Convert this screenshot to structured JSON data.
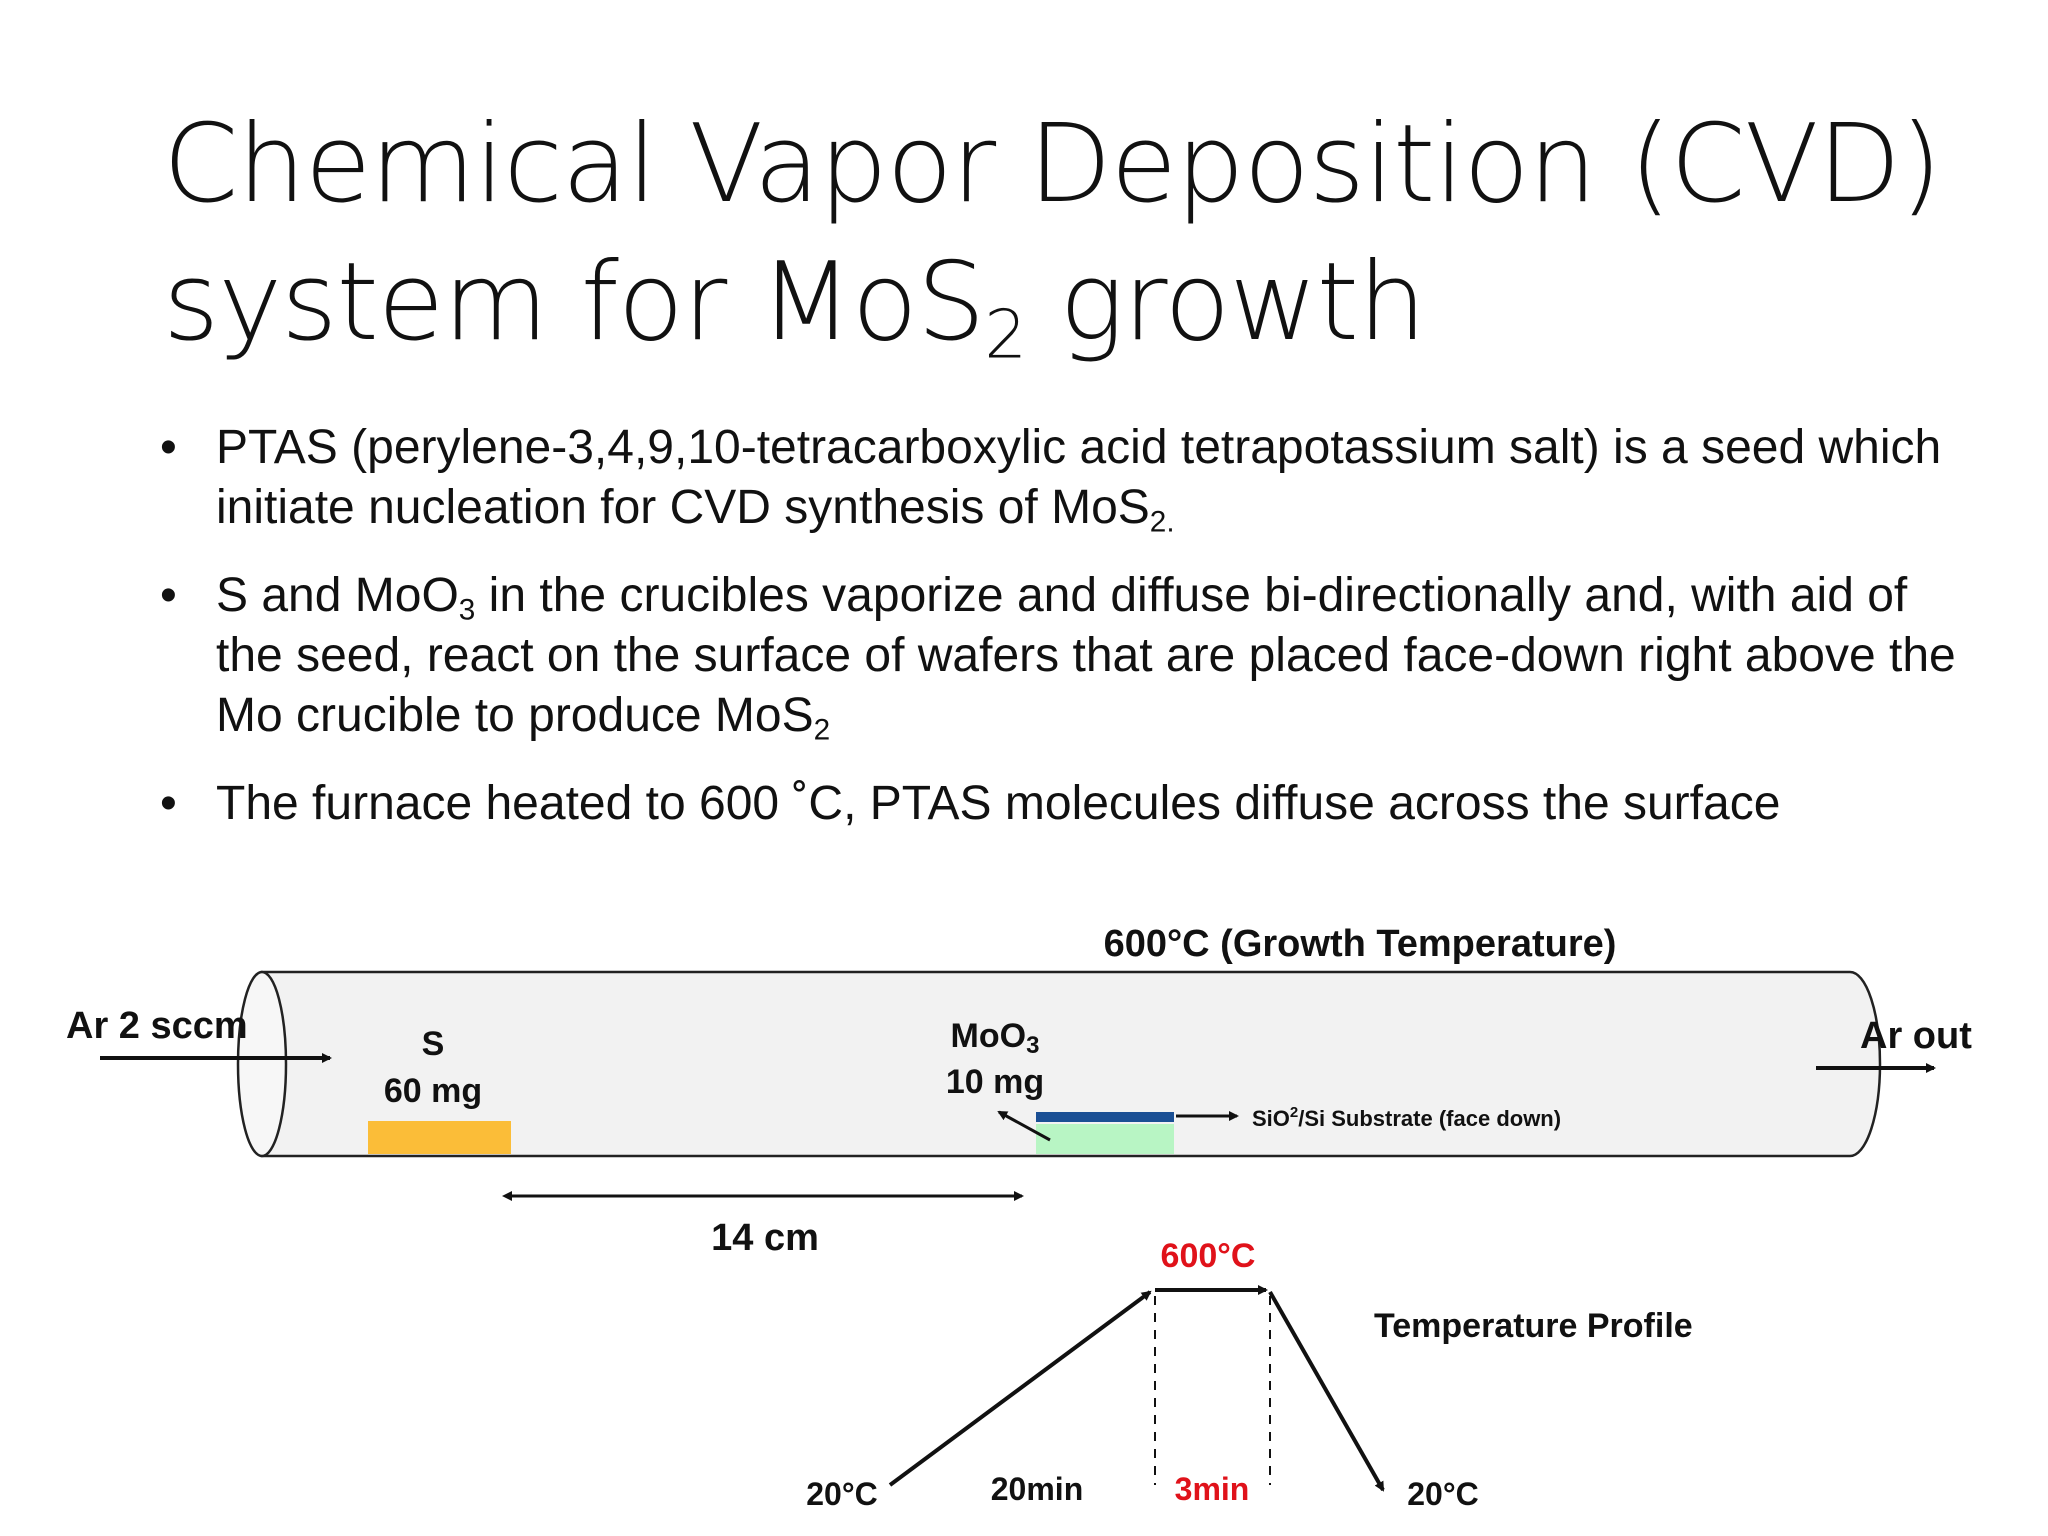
{
  "title": {
    "line1": "Chemical Vapor Deposition (CVD)",
    "line2_prefix": "system for MoS",
    "line2_sub": "2",
    "line2_suffix": " growth"
  },
  "bullets": [
    {
      "dot": "•",
      "text_a": "PTAS (perylene-3,4,9,10-tetracarboxylic acid tetrapotassium salt) is a seed which initiate nucleation for CVD synthesis of MoS",
      "sub_a": "2.",
      "text_b": "",
      "sub_b": "",
      "text_c": ""
    },
    {
      "dot": "•",
      "text_a": "S and MoO",
      "sub_a": "3",
      "text_b": " in the crucibles vaporize and diffuse bi-directionally and, with aid of the seed, react on the surface of wafers that are placed face-down right above the Mo crucible to produce MoS",
      "sub_b": "2",
      "text_c": ""
    },
    {
      "dot": "•",
      "text_a": "The furnace heated to 600 ˚C, PTAS molecules diffuse across the surface",
      "sub_a": "",
      "text_b": "",
      "sub_b": "",
      "text_c": ""
    }
  ],
  "diagram": {
    "growth_temp_label": "600°C (Growth Temperature)",
    "ar_in_label": "Ar 2 sccm",
    "ar_out_label": "Ar out",
    "s_label": "S",
    "s_mass": "60 mg",
    "moo3_label_prefix": "MoO",
    "moo3_label_sub": "3",
    "moo3_mass": "10 mg",
    "substrate_prefix": "SiO",
    "substrate_sub": "2",
    "substrate_suffix": "/Si Substrate (face down)",
    "distance_label": "14 cm",
    "profile": {
      "title": "Temperature Profile",
      "peak_label": "600°C",
      "start_label": "20°C",
      "end_label": "20°C",
      "ramp_label": "20min",
      "hold_label": "3min"
    },
    "colors": {
      "s_crucible": "#fbbd38",
      "moo3_crucible": "#b8f5c4",
      "substrate": "#1a4f94",
      "highlight_red": "#e0121a",
      "tube_fill": "#f2f2f2"
    }
  }
}
